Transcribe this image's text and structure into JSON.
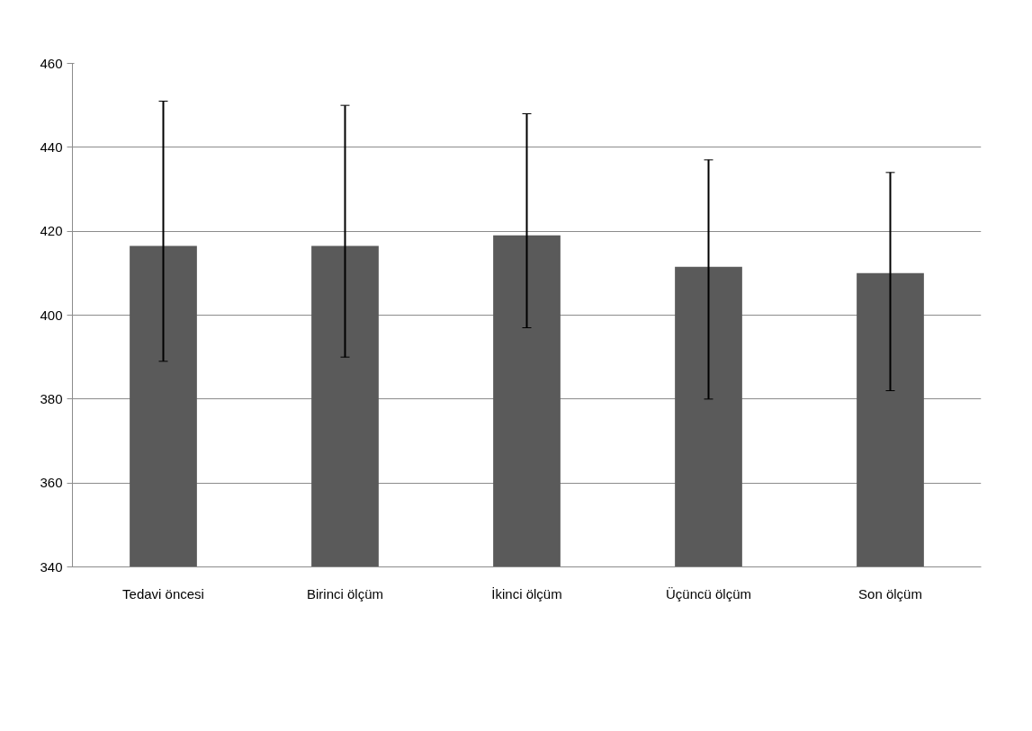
{
  "chart_data": {
    "type": "bar",
    "categories": [
      "Tedavi öncesi",
      "Birinci ölçüm",
      "İkinci ölçüm",
      "Üçüncü ölçüm",
      "Son ölçüm"
    ],
    "values": [
      416.5,
      416.5,
      419,
      411.5,
      410
    ],
    "errors": [
      [
        389,
        451
      ],
      [
        390,
        450
      ],
      [
        397,
        448
      ],
      [
        380,
        437
      ],
      [
        382,
        434
      ]
    ],
    "color": "#5a5a5a",
    "ylim": [
      340,
      460
    ],
    "yticks": [
      340,
      360,
      380,
      400,
      420,
      440,
      460
    ],
    "grid": "y"
  }
}
